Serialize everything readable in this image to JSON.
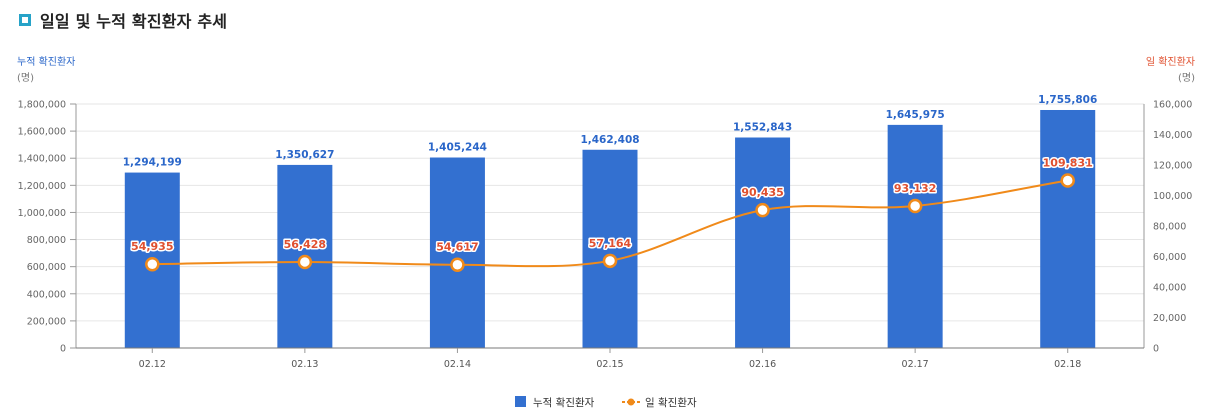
{
  "title": "일일 및 누적 확진환자 추세",
  "chart_data": {
    "type": "bar",
    "categories": [
      "02.12",
      "02.13",
      "02.14",
      "02.15",
      "02.16",
      "02.17",
      "02.18"
    ],
    "series": [
      {
        "name": "누적 확진환자",
        "type": "bar",
        "axis": "left",
        "color": "#3370d0",
        "values": [
          1294199,
          1350627,
          1405244,
          1462408,
          1552843,
          1645975,
          1755806
        ]
      },
      {
        "name": "일 확진환자",
        "type": "line",
        "axis": "right",
        "color": "#f08a1a",
        "values": [
          54935,
          56428,
          54617,
          57164,
          90435,
          93132,
          109831
        ]
      }
    ],
    "left_axis": {
      "label": "누적 확진환자",
      "unit": "(명)",
      "ylim": [
        0,
        1800000
      ],
      "step": 200000,
      "color": "#2a66c9"
    },
    "right_axis": {
      "label": "일 확진환자",
      "unit": "(명)",
      "ylim": [
        0,
        160000
      ],
      "step": 20000,
      "color": "#e0502f"
    },
    "grid": true,
    "legend_position": "bottom-center"
  }
}
